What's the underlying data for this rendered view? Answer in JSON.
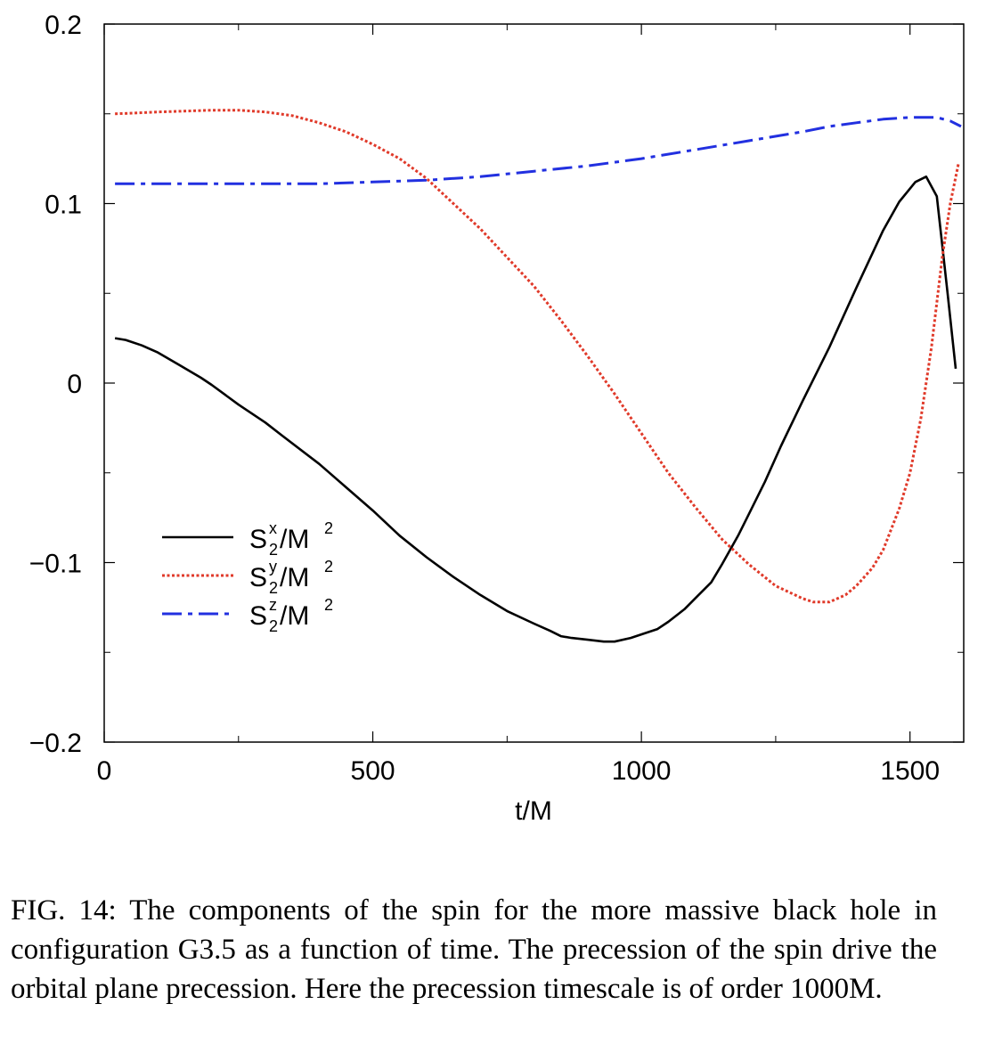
{
  "chart_data": {
    "type": "line",
    "title": "",
    "xlabel": "t/M",
    "ylabel": "",
    "xlim": [
      0,
      1600
    ],
    "ylim": [
      -0.2,
      0.2
    ],
    "xticks": [
      0,
      500,
      1000,
      1500
    ],
    "xtick_labels": [
      "0",
      "500",
      "1000",
      "1500"
    ],
    "yticks": [
      -0.2,
      -0.1,
      0,
      0.1,
      0.2
    ],
    "ytick_labels": [
      "−0.2",
      "−0.1",
      "0",
      "0.1",
      "0.2"
    ],
    "grid": false,
    "legend_position": "center-left",
    "series": [
      {
        "name": "S^x_2/M^2",
        "label_base": "S",
        "label_sup": "x",
        "label_sub": "2",
        "label_tail": "/M",
        "label_tail_sup": "2",
        "color": "#000000",
        "style": "solid",
        "x": [
          20,
          40,
          70,
          100,
          140,
          180,
          200,
          250,
          300,
          330,
          400,
          450,
          500,
          550,
          600,
          650,
          700,
          750,
          800,
          830,
          850,
          870,
          900,
          930,
          950,
          980,
          1000,
          1030,
          1050,
          1080,
          1100,
          1130,
          1150,
          1180,
          1200,
          1230,
          1260,
          1300,
          1350,
          1400,
          1450,
          1480,
          1510,
          1530,
          1550,
          1570,
          1585
        ],
        "y": [
          0.025,
          0.024,
          0.021,
          0.017,
          0.01,
          0.003,
          -0.001,
          -0.012,
          -0.022,
          -0.029,
          -0.045,
          -0.058,
          -0.071,
          -0.085,
          -0.097,
          -0.108,
          -0.118,
          -0.127,
          -0.134,
          -0.138,
          -0.141,
          -0.142,
          -0.143,
          -0.144,
          -0.144,
          -0.142,
          -0.14,
          -0.137,
          -0.133,
          -0.126,
          -0.12,
          -0.111,
          -0.101,
          -0.085,
          -0.073,
          -0.055,
          -0.035,
          -0.01,
          0.02,
          0.053,
          0.085,
          0.101,
          0.112,
          0.115,
          0.104,
          0.05,
          0.008
        ]
      },
      {
        "name": "S^y_2/M^2",
        "label_base": "S",
        "label_sup": "y",
        "label_sub": "2",
        "label_tail": "/M",
        "label_tail_sup": "2",
        "color": "#e03a2a",
        "style": "dotted",
        "x": [
          20,
          100,
          200,
          250,
          300,
          350,
          400,
          450,
          500,
          550,
          600,
          650,
          700,
          750,
          800,
          850,
          900,
          950,
          1000,
          1050,
          1100,
          1150,
          1200,
          1250,
          1300,
          1320,
          1350,
          1380,
          1400,
          1430,
          1450,
          1480,
          1500,
          1520,
          1540,
          1560,
          1575,
          1590
        ],
        "y": [
          0.15,
          0.151,
          0.152,
          0.152,
          0.151,
          0.149,
          0.145,
          0.14,
          0.133,
          0.125,
          0.114,
          0.1,
          0.086,
          0.07,
          0.054,
          0.035,
          0.015,
          -0.006,
          -0.028,
          -0.05,
          -0.069,
          -0.087,
          -0.101,
          -0.113,
          -0.12,
          -0.122,
          -0.122,
          -0.118,
          -0.113,
          -0.103,
          -0.093,
          -0.07,
          -0.05,
          -0.02,
          0.02,
          0.07,
          0.1,
          0.122
        ]
      },
      {
        "name": "S^z_2/M^2",
        "label_base": "S",
        "label_sup": "z",
        "label_sub": "2",
        "label_tail": "/M",
        "label_tail_sup": "2",
        "color": "#2230e0",
        "style": "dashdot",
        "x": [
          20,
          100,
          200,
          300,
          400,
          500,
          600,
          700,
          800,
          900,
          1000,
          1100,
          1200,
          1300,
          1350,
          1400,
          1450,
          1500,
          1550,
          1575,
          1595
        ],
        "y": [
          0.111,
          0.111,
          0.111,
          0.111,
          0.111,
          0.112,
          0.113,
          0.115,
          0.118,
          0.121,
          0.125,
          0.13,
          0.135,
          0.14,
          0.143,
          0.145,
          0.147,
          0.148,
          0.148,
          0.146,
          0.143
        ]
      }
    ]
  },
  "caption": "FIG. 14: The components of the spin for the more massive black hole in configuration G3.5 as a function of time. The precession of the spin drive the orbital plane precession. Here the precession timescale is of order 1000M."
}
